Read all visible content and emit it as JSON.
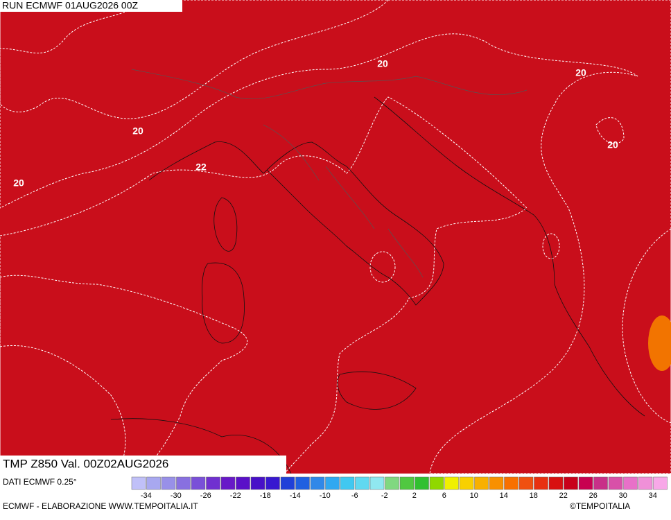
{
  "header": {
    "run": "RUN ECMWF 01AUG2026 00Z"
  },
  "map": {
    "title": "TMP Z850 Val. 00Z02AUG2026",
    "contour_labels": [
      20,
      20,
      20,
      20,
      20,
      22
    ]
  },
  "legend": {
    "source": "DATI ECMWF 0.25°",
    "ticks": [
      -34,
      -30,
      -26,
      -22,
      -18,
      -14,
      -10,
      -6,
      -2,
      2,
      6,
      10,
      14,
      18,
      22,
      26,
      30,
      34
    ],
    "colors": [
      "#c0c0f8",
      "#a8a8f0",
      "#9890e8",
      "#8870e0",
      "#7a50d8",
      "#7030d0",
      "#6818c8",
      "#5a10c8",
      "#4810c8",
      "#3818d0",
      "#2040d8",
      "#2060e0",
      "#3088e8",
      "#30a8f0",
      "#40c8f0",
      "#60d8f0",
      "#90e8f0",
      "#80d880",
      "#50c840",
      "#30c030",
      "#90d800",
      "#f0f000",
      "#f8d000",
      "#f8b000",
      "#f89000",
      "#f87000",
      "#f05010",
      "#e83010",
      "#d81010",
      "#c8001a",
      "#c80050",
      "#c83088",
      "#d850a8",
      "#e870c8",
      "#f090d8",
      "#f8a8e8"
    ]
  },
  "footer": {
    "credit": "ECMWF - ELABORAZIONE WWW.TEMPOITALIA.IT",
    "copyright": "©TEMPOITALIA"
  }
}
